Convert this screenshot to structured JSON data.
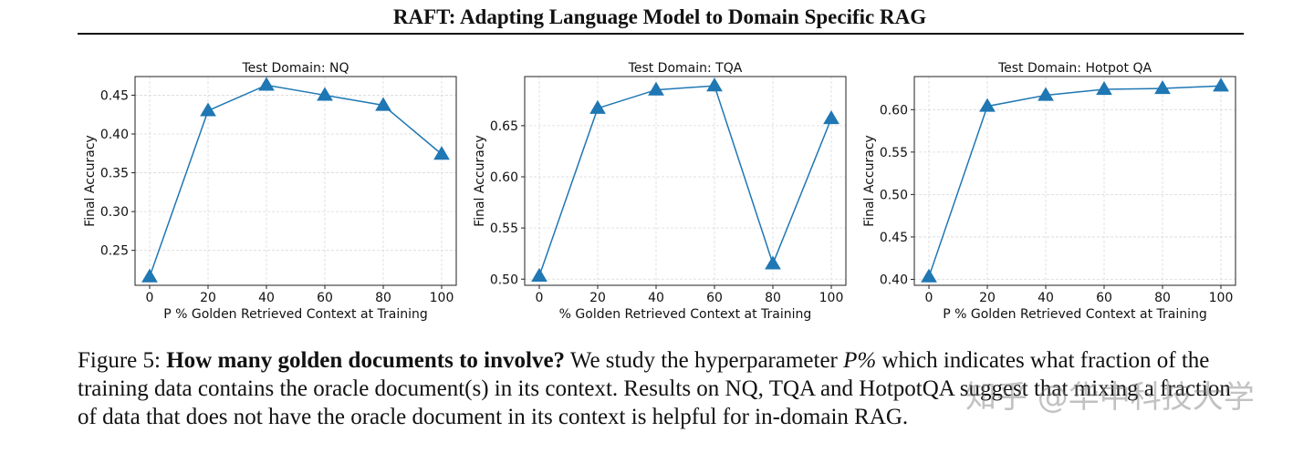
{
  "header": {
    "title": "RAFT: Adapting Language Model to Domain Specific RAG"
  },
  "chart_data": [
    {
      "type": "line",
      "title": "Test Domain: NQ",
      "xlabel": "P % Golden Retrieved Context at Training",
      "ylabel": "Final Accuracy",
      "x": [
        0,
        20,
        40,
        60,
        80,
        100
      ],
      "values": [
        0.216,
        0.43,
        0.463,
        0.45,
        0.437,
        0.374
      ],
      "xticks": [
        0,
        20,
        40,
        60,
        80,
        100
      ],
      "xtick_labels": [
        "0",
        "20",
        "40",
        "60",
        "80",
        "100"
      ],
      "yticks": [
        0.25,
        0.3,
        0.35,
        0.4,
        0.45
      ],
      "ytick_labels": [
        "0.25",
        "0.30",
        "0.35",
        "0.40",
        "0.45"
      ],
      "ylim": [
        0.205,
        0.474
      ],
      "xlim": [
        -5,
        105
      ],
      "marker": "triangle-up",
      "color": "#1f77b4",
      "grid": true
    },
    {
      "type": "line",
      "title": "Test Domain: TQA",
      "xlabel": "% Golden Retrieved Context at Training",
      "ylabel": "Final Accuracy",
      "x": [
        0,
        20,
        40,
        60,
        80,
        100
      ],
      "values": [
        0.503,
        0.667,
        0.685,
        0.689,
        0.515,
        0.657
      ],
      "xticks": [
        0,
        20,
        40,
        60,
        80,
        100
      ],
      "xtick_labels": [
        "0",
        "20",
        "40",
        "60",
        "80",
        "100"
      ],
      "yticks": [
        0.5,
        0.55,
        0.6,
        0.65
      ],
      "ytick_labels": [
        "0.50",
        "0.55",
        "0.60",
        "0.65"
      ],
      "ylim": [
        0.494,
        0.698
      ],
      "xlim": [
        -5,
        105
      ],
      "marker": "triangle-up",
      "color": "#1f77b4",
      "grid": true
    },
    {
      "type": "line",
      "title": "Test Domain: Hotpot QA",
      "xlabel": "P % Golden Retrieved Context at Training",
      "ylabel": "Final Accuracy",
      "x": [
        0,
        20,
        40,
        60,
        80,
        100
      ],
      "values": [
        0.403,
        0.604,
        0.617,
        0.624,
        0.625,
        0.628
      ],
      "xticks": [
        0,
        20,
        40,
        60,
        80,
        100
      ],
      "xtick_labels": [
        "0",
        "20",
        "40",
        "60",
        "80",
        "100"
      ],
      "yticks": [
        0.4,
        0.45,
        0.5,
        0.55,
        0.6
      ],
      "ytick_labels": [
        "0.40",
        "0.45",
        "0.50",
        "0.55",
        "0.60"
      ],
      "ylim": [
        0.393,
        0.639
      ],
      "xlim": [
        -5,
        105
      ],
      "marker": "triangle-up",
      "color": "#1f77b4",
      "grid": true
    }
  ],
  "caption": {
    "label": "Figure 5: ",
    "bold": "How many golden documents to involve?",
    "text_before_var": " We study the hyperparameter ",
    "variable": "P%",
    "text_after_var": " which indicates what fraction of the training data contains the oracle document(s) in its context. Results on NQ, TQA and HotpotQA suggest that mixing a fraction of data that does not have the oracle document in its context is helpful for in-domain RAG."
  },
  "watermark": "知乎 @华中科技大学"
}
